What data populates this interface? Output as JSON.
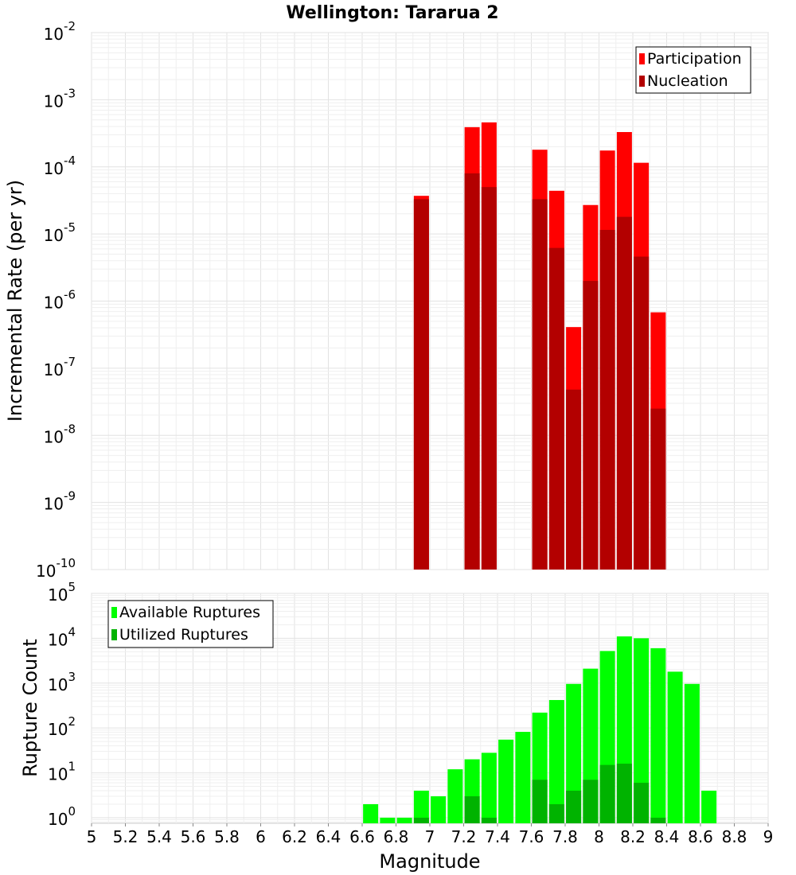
{
  "title": "Wellington: Tararua 2",
  "xlabel": "Magnitude",
  "chart_data": [
    {
      "type": "bar",
      "ylabel": "Incremental Rate (per yr)",
      "yscale": "log",
      "ylim": [
        1e-10,
        0.01
      ],
      "xlim": [
        5,
        9
      ],
      "x": [
        6.95,
        7.25,
        7.35,
        7.65,
        7.75,
        7.85,
        7.95,
        8.05,
        8.15,
        8.25,
        8.35
      ],
      "legend_position": "top-right",
      "series": [
        {
          "name": "Participation",
          "color": "#ff0000",
          "values": [
            3.7e-05,
            0.00039,
            0.00046,
            0.00018,
            4.4e-05,
            4.1e-07,
            2.7e-05,
            0.000175,
            0.00033,
            0.000115,
            6.8e-07
          ]
        },
        {
          "name": "Nucleation",
          "color": "#b30000",
          "values": [
            3.3e-05,
            8e-05,
            5e-05,
            3.3e-05,
            6.2e-06,
            4.8e-08,
            2e-06,
            1.15e-05,
            1.8e-05,
            4.6e-06,
            2.5e-08
          ]
        }
      ]
    },
    {
      "type": "bar",
      "ylabel": "Rupture Count",
      "yscale": "log",
      "ylim": [
        0.75,
        100000
      ],
      "xlim": [
        5,
        9
      ],
      "x": [
        6.65,
        6.75,
        6.85,
        6.95,
        7.05,
        7.15,
        7.25,
        7.35,
        7.45,
        7.55,
        7.65,
        7.75,
        7.85,
        7.95,
        8.05,
        8.15,
        8.25,
        8.35,
        8.45,
        8.55,
        8.65
      ],
      "legend_position": "top-left",
      "series": [
        {
          "name": "Available Ruptures",
          "color": "#00ff00",
          "values": [
            2,
            1,
            1,
            4,
            3,
            12,
            20,
            28,
            55,
            82,
            220,
            420,
            960,
            2100,
            5200,
            11000,
            10000,
            6000,
            1800,
            960,
            4
          ]
        },
        {
          "name": "Utilized Ruptures",
          "color": "#00b300",
          "values": [
            0,
            0,
            0,
            1,
            0,
            0,
            3,
            1,
            0,
            0,
            7,
            2,
            4,
            7,
            15,
            16,
            6,
            1,
            0,
            0,
            0
          ]
        }
      ]
    }
  ],
  "x_ticks": [
    "5",
    "5.2",
    "5.4",
    "5.6",
    "5.8",
    "6",
    "6.2",
    "6.4",
    "6.6",
    "6.8",
    "7",
    "7.2",
    "7.4",
    "7.6",
    "7.8",
    "8",
    "8.2",
    "8.4",
    "8.6",
    "8.8",
    "9"
  ],
  "top_y_exponents": [
    "-2",
    "-3",
    "-4",
    "-5",
    "-6",
    "-7",
    "-8",
    "-9",
    "-10"
  ],
  "bottom_y_exponents": [
    "5",
    "4",
    "3",
    "2",
    "1",
    "0"
  ],
  "y_tick_base": "10"
}
